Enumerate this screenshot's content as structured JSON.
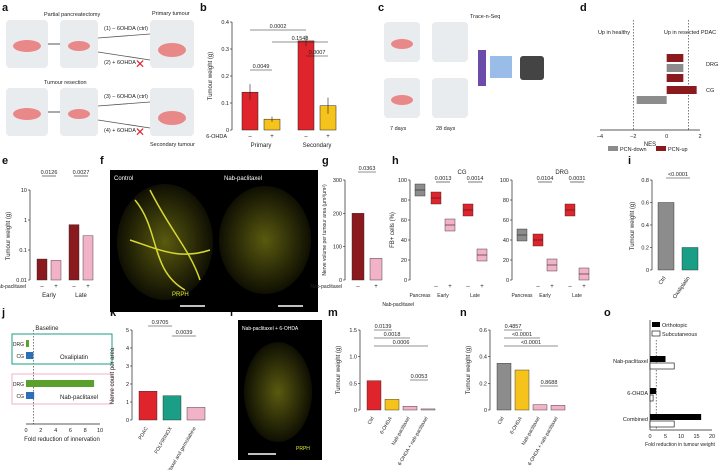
{
  "panel_letters": [
    "a",
    "b",
    "c",
    "d",
    "e",
    "f",
    "g",
    "h",
    "i",
    "j",
    "k",
    "l",
    "m",
    "n",
    "o"
  ],
  "colors": {
    "red": "#e0242b",
    "yellow": "#f6c21c",
    "dark_red": "#8b1a1f",
    "pink": "#f2b2c8",
    "grey": "#8c8c8c",
    "teal": "#1a9e86",
    "green": "#5aa02c",
    "blue": "#2d6fb7",
    "prph": "#dede30"
  },
  "panel_a": {
    "top_procedure": "Partial pancreatectomy",
    "bottom_procedure": "Tumour resection",
    "arm1": "(1) – 6OHDA (ctrl)",
    "arm2": "(2) + 6OHDA",
    "arm3": "(3) – 6OHDA (ctrl)",
    "arm4": "(4) + 6OHDA",
    "primary": "Primary tumour",
    "secondary": "Secondary tumour"
  },
  "panel_c": {
    "trace": "Trace-n-Seq",
    "days7": "7 days",
    "days28": "28 days"
  },
  "panel_f": {
    "control": "Control",
    "treated": "Nab-paclitaxel",
    "stain": "PRPH"
  },
  "panel_l": {
    "treated": "Nab-paclitaxel + 6-OHDA",
    "stain": "PRPH"
  },
  "chart_data": [
    {
      "panel": "b",
      "type": "bar",
      "ylabel": "Tumour weight (g)",
      "ylim": [
        0,
        0.4
      ],
      "yticks": [
        "0",
        "0.1",
        "0.2",
        "0.3",
        "0.4"
      ],
      "treatment_label": "6-OHDA",
      "signs": [
        "–",
        "+",
        "–",
        "+"
      ],
      "groups": [
        "Primary",
        "Secondary"
      ],
      "values": [
        0.14,
        0.04,
        0.33,
        0.09
      ],
      "errors": [
        0.03,
        0.01,
        0.02,
        0.03
      ],
      "pvalues": [
        "0.0002",
        "0.1548",
        "0.0049",
        "0.0007"
      ]
    },
    {
      "panel": "d",
      "type": "bar",
      "xlabel": "NES",
      "xlim": [
        -4,
        2
      ],
      "xticks": [
        "–4",
        "–2",
        "0",
        "2"
      ],
      "left_note": "Up in healthy",
      "right_note": "Up in resected PDAC",
      "categories": [
        "DRG",
        "CG"
      ],
      "bars": [
        {
          "group": "DRG",
          "series": "PCN-up",
          "value": 1.0
        },
        {
          "group": "DRG",
          "series": "PCN-down",
          "value": 1.0
        },
        {
          "group": "DRG",
          "series": "PCN-up",
          "value": 1.0
        },
        {
          "group": "CG",
          "series": "PCN-up",
          "value": 1.8
        },
        {
          "group": "CG",
          "series": "PCN-down",
          "value": -1.8
        }
      ],
      "legend": [
        "PCN-down",
        "PCN-up"
      ]
    },
    {
      "panel": "e",
      "type": "bar",
      "ylabel": "Tumour weight (g)",
      "ylim": [
        0.01,
        10
      ],
      "yticks": [
        "0.01",
        "0.1",
        "1",
        "10"
      ],
      "treatment_label": "Nab-paclitaxel",
      "signs": [
        "–",
        "+",
        "–",
        "+"
      ],
      "groups": [
        "Early",
        "Late"
      ],
      "values": [
        0.05,
        0.045,
        0.7,
        0.3
      ],
      "pvalues": [
        "0.0126",
        "0.0027"
      ]
    },
    {
      "panel": "g",
      "type": "bar",
      "ylabel": "Nerve volume per tumour area (µm³/µm²)",
      "ylim": [
        0,
        300
      ],
      "yticks": [
        "0",
        "100",
        "200",
        "300"
      ],
      "treatment_label": "Nab-paclitaxel",
      "signs": [
        "–",
        "+"
      ],
      "values": [
        200,
        65
      ],
      "pvalues": [
        "0.0363"
      ]
    },
    {
      "panel": "h",
      "type": "box",
      "ylabel": "FB+ cells (%)",
      "ylim": [
        0,
        100
      ],
      "yticks": [
        "0",
        "20",
        "40",
        "60",
        "80",
        "100"
      ],
      "subtitles": [
        "CG",
        "DRG"
      ],
      "treatment_label": "Nab-paclitaxel",
      "signs": [
        "",
        "–",
        "+",
        "–",
        "+"
      ],
      "groups": [
        "Pancreas",
        "Early",
        "Late"
      ],
      "pvalues": [
        "0.0013",
        "0.0014",
        "0.0104",
        "0.0031"
      ]
    },
    {
      "panel": "i",
      "type": "bar",
      "ylabel": "Tumour weight (g)",
      "ylim": [
        0,
        0.8
      ],
      "yticks": [
        "0",
        "0.2",
        "0.4",
        "0.6",
        "0.8"
      ],
      "categories": [
        "Ctrl",
        "Oxaliplatin"
      ],
      "values": [
        0.6,
        0.2
      ],
      "pvalues": [
        "<0.0001"
      ]
    },
    {
      "panel": "j",
      "type": "bar",
      "xlabel": "Fold reduction of innervation",
      "xlim": [
        0,
        10
      ],
      "xticks": [
        "0",
        "2",
        "4",
        "6",
        "8",
        "10"
      ],
      "baseline": "Baseline",
      "groups": [
        "Oxaliplatin",
        "Nab-paclitaxel"
      ],
      "categories": [
        "DRG",
        "CG",
        "DRG",
        "CG"
      ],
      "values": [
        0.4,
        1.0,
        9.2,
        1.1
      ]
    },
    {
      "panel": "k",
      "type": "bar",
      "ylabel": "Nerve count per area",
      "ylim": [
        0,
        5
      ],
      "yticks": [
        "0",
        "1",
        "2",
        "3",
        "4",
        "5"
      ],
      "categories": [
        "PDAC",
        "FOLFIRINOX",
        "Nab-paclitaxel and gemcitabine"
      ],
      "values": [
        1.6,
        1.35,
        0.7
      ],
      "pvalues": [
        "0.9705",
        "0.0039"
      ]
    },
    {
      "panel": "m",
      "type": "bar",
      "ylabel": "Tumour weight (g)",
      "ylim": [
        0,
        1.5
      ],
      "yticks": [
        "0",
        "0.5",
        "1.0",
        "1.5"
      ],
      "categories": [
        "Ctrl",
        "6-OHDA",
        "Nab-paclitaxel",
        "6-OHDA + nab-paclitaxel"
      ],
      "values": [
        0.55,
        0.2,
        0.07,
        0.02
      ],
      "pvalues": [
        "0.0139",
        "0.0018",
        "0.0006",
        "0.0053"
      ]
    },
    {
      "panel": "n",
      "type": "bar",
      "ylabel": "Tumour weight (g)",
      "ylim": [
        0,
        0.6
      ],
      "yticks": [
        "0",
        "0.2",
        "0.4",
        "0.6"
      ],
      "categories": [
        "Ctrl",
        "6-OHDA",
        "Nab-paclitaxel",
        "6-OHDA + nab-paclitaxel"
      ],
      "values": [
        0.35,
        0.3,
        0.04,
        0.035
      ],
      "pvalues": [
        "0.4857",
        "<0.0001",
        "<0.0001",
        "0.8688"
      ]
    },
    {
      "panel": "o",
      "type": "bar",
      "xlabel": "Fold reduction in tumour weight",
      "xlim": [
        0,
        20
      ],
      "xticks": [
        "0",
        "5",
        "10",
        "15",
        "20"
      ],
      "legend": [
        "Orthotopic",
        "Subcutaneous"
      ],
      "groups": [
        "Nab-paclitaxel",
        "6-OHDA",
        "Combined"
      ],
      "series": [
        {
          "name": "Orthotopic",
          "values": [
            5.0,
            2.0,
            16.5
          ]
        },
        {
          "name": "Subcutaneous",
          "values": [
            7.8,
            1.0,
            7.8
          ]
        }
      ]
    }
  ]
}
